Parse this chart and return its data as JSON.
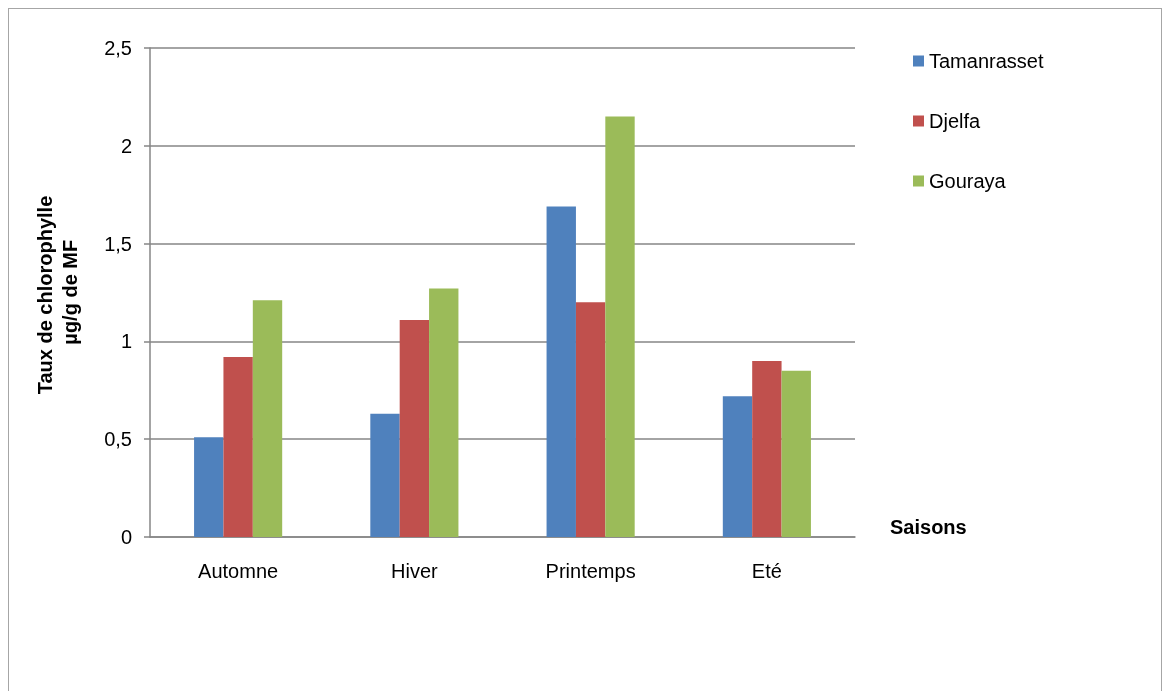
{
  "chart_data": {
    "type": "bar",
    "xlabel": "Saisons",
    "ylabel": "Taux de chlorophylle µg/g de MF",
    "categories": [
      "Automne",
      "Hiver",
      "Printemps",
      "Eté"
    ],
    "series": [
      {
        "name": "Tamanrasset",
        "color": "#4f81bd",
        "values": [
          0.51,
          0.63,
          1.69,
          0.72
        ]
      },
      {
        "name": "Djelfa",
        "color": "#c0504d",
        "values": [
          0.92,
          1.11,
          1.2,
          0.9
        ]
      },
      {
        "name": "Gouraya",
        "color": "#9bbb59",
        "values": [
          1.21,
          1.27,
          2.15,
          0.85
        ]
      }
    ],
    "ylim": [
      0,
      2.5
    ],
    "yticks": [
      0,
      {
        "value": 0.5,
        "label": "0,5"
      },
      1,
      {
        "value": 1.5,
        "label": "1,5"
      },
      2,
      {
        "value": 2.5,
        "label": "2,5"
      }
    ],
    "grid": "y",
    "legend": "top right"
  }
}
